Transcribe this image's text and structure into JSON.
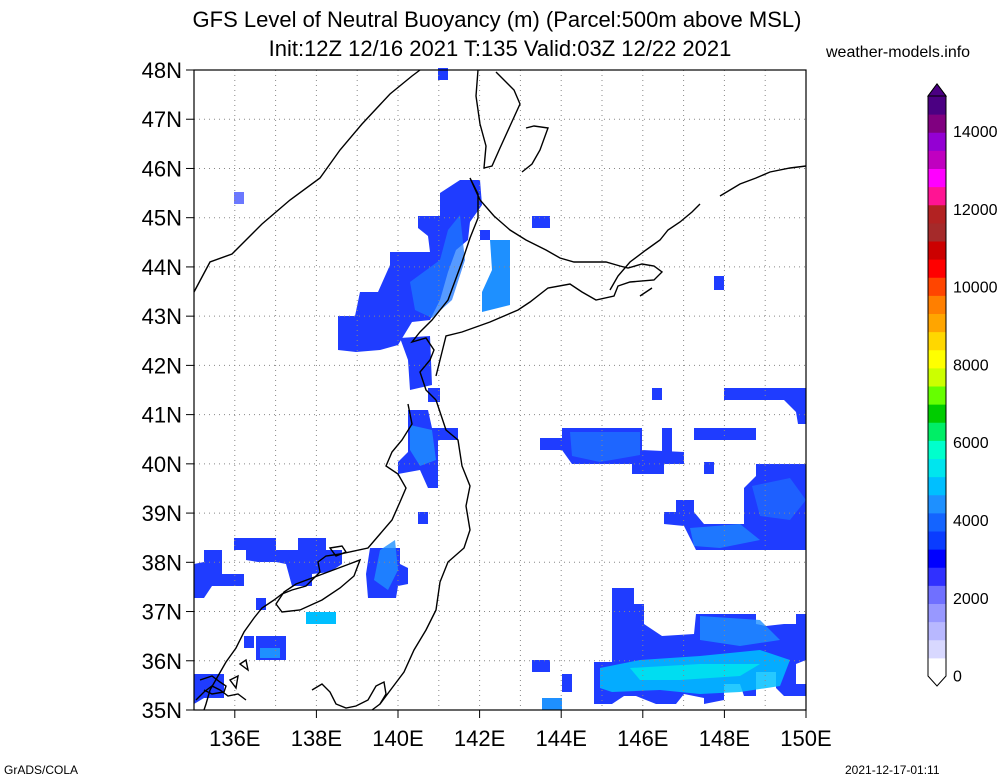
{
  "header": {
    "title_line1": "GFS Level of Neutral Buoyancy (m) (Parcel:500m above MSL)",
    "title_line2": "Init:12Z 12/16 2021 T:135 Valid:03Z 12/22 2021",
    "site": "weather-models.info"
  },
  "map": {
    "lat_labels": [
      "48N",
      "47N",
      "46N",
      "45N",
      "44N",
      "43N",
      "42N",
      "41N",
      "40N",
      "39N",
      "38N",
      "37N",
      "36N",
      "35N"
    ],
    "lon_labels": [
      "136E",
      "138E",
      "140E",
      "142E",
      "144E",
      "146E",
      "148E",
      "150E"
    ],
    "lon_range": [
      135,
      150
    ],
    "lat_range": [
      35,
      48
    ],
    "land_color": "#ffffff",
    "coast_color": "#000000"
  },
  "colorbar": {
    "labels": [
      "14000",
      "12000",
      "10000",
      "8000",
      "6000",
      "4000",
      "2000",
      "0"
    ],
    "colors": [
      "#ffffff",
      "#d8d8ff",
      "#b8b8ff",
      "#9898ff",
      "#7070ff",
      "#3030ff",
      "#0000ff",
      "#0a3cff",
      "#1464ff",
      "#1e90ff",
      "#00bfff",
      "#00e5ee",
      "#00ffcc",
      "#00ee66",
      "#00cc00",
      "#66ff00",
      "#ccff00",
      "#ffff00",
      "#ffd700",
      "#ffa500",
      "#ff7f00",
      "#ff4500",
      "#ff0000",
      "#cc0000",
      "#a52a2a",
      "#b22222",
      "#ff1493",
      "#ff00ff",
      "#c000c0",
      "#9400d3",
      "#800080",
      "#4b0082"
    ]
  },
  "footer": {
    "left": "GrADS/COLA",
    "right": "2021-12-17-01:11"
  }
}
